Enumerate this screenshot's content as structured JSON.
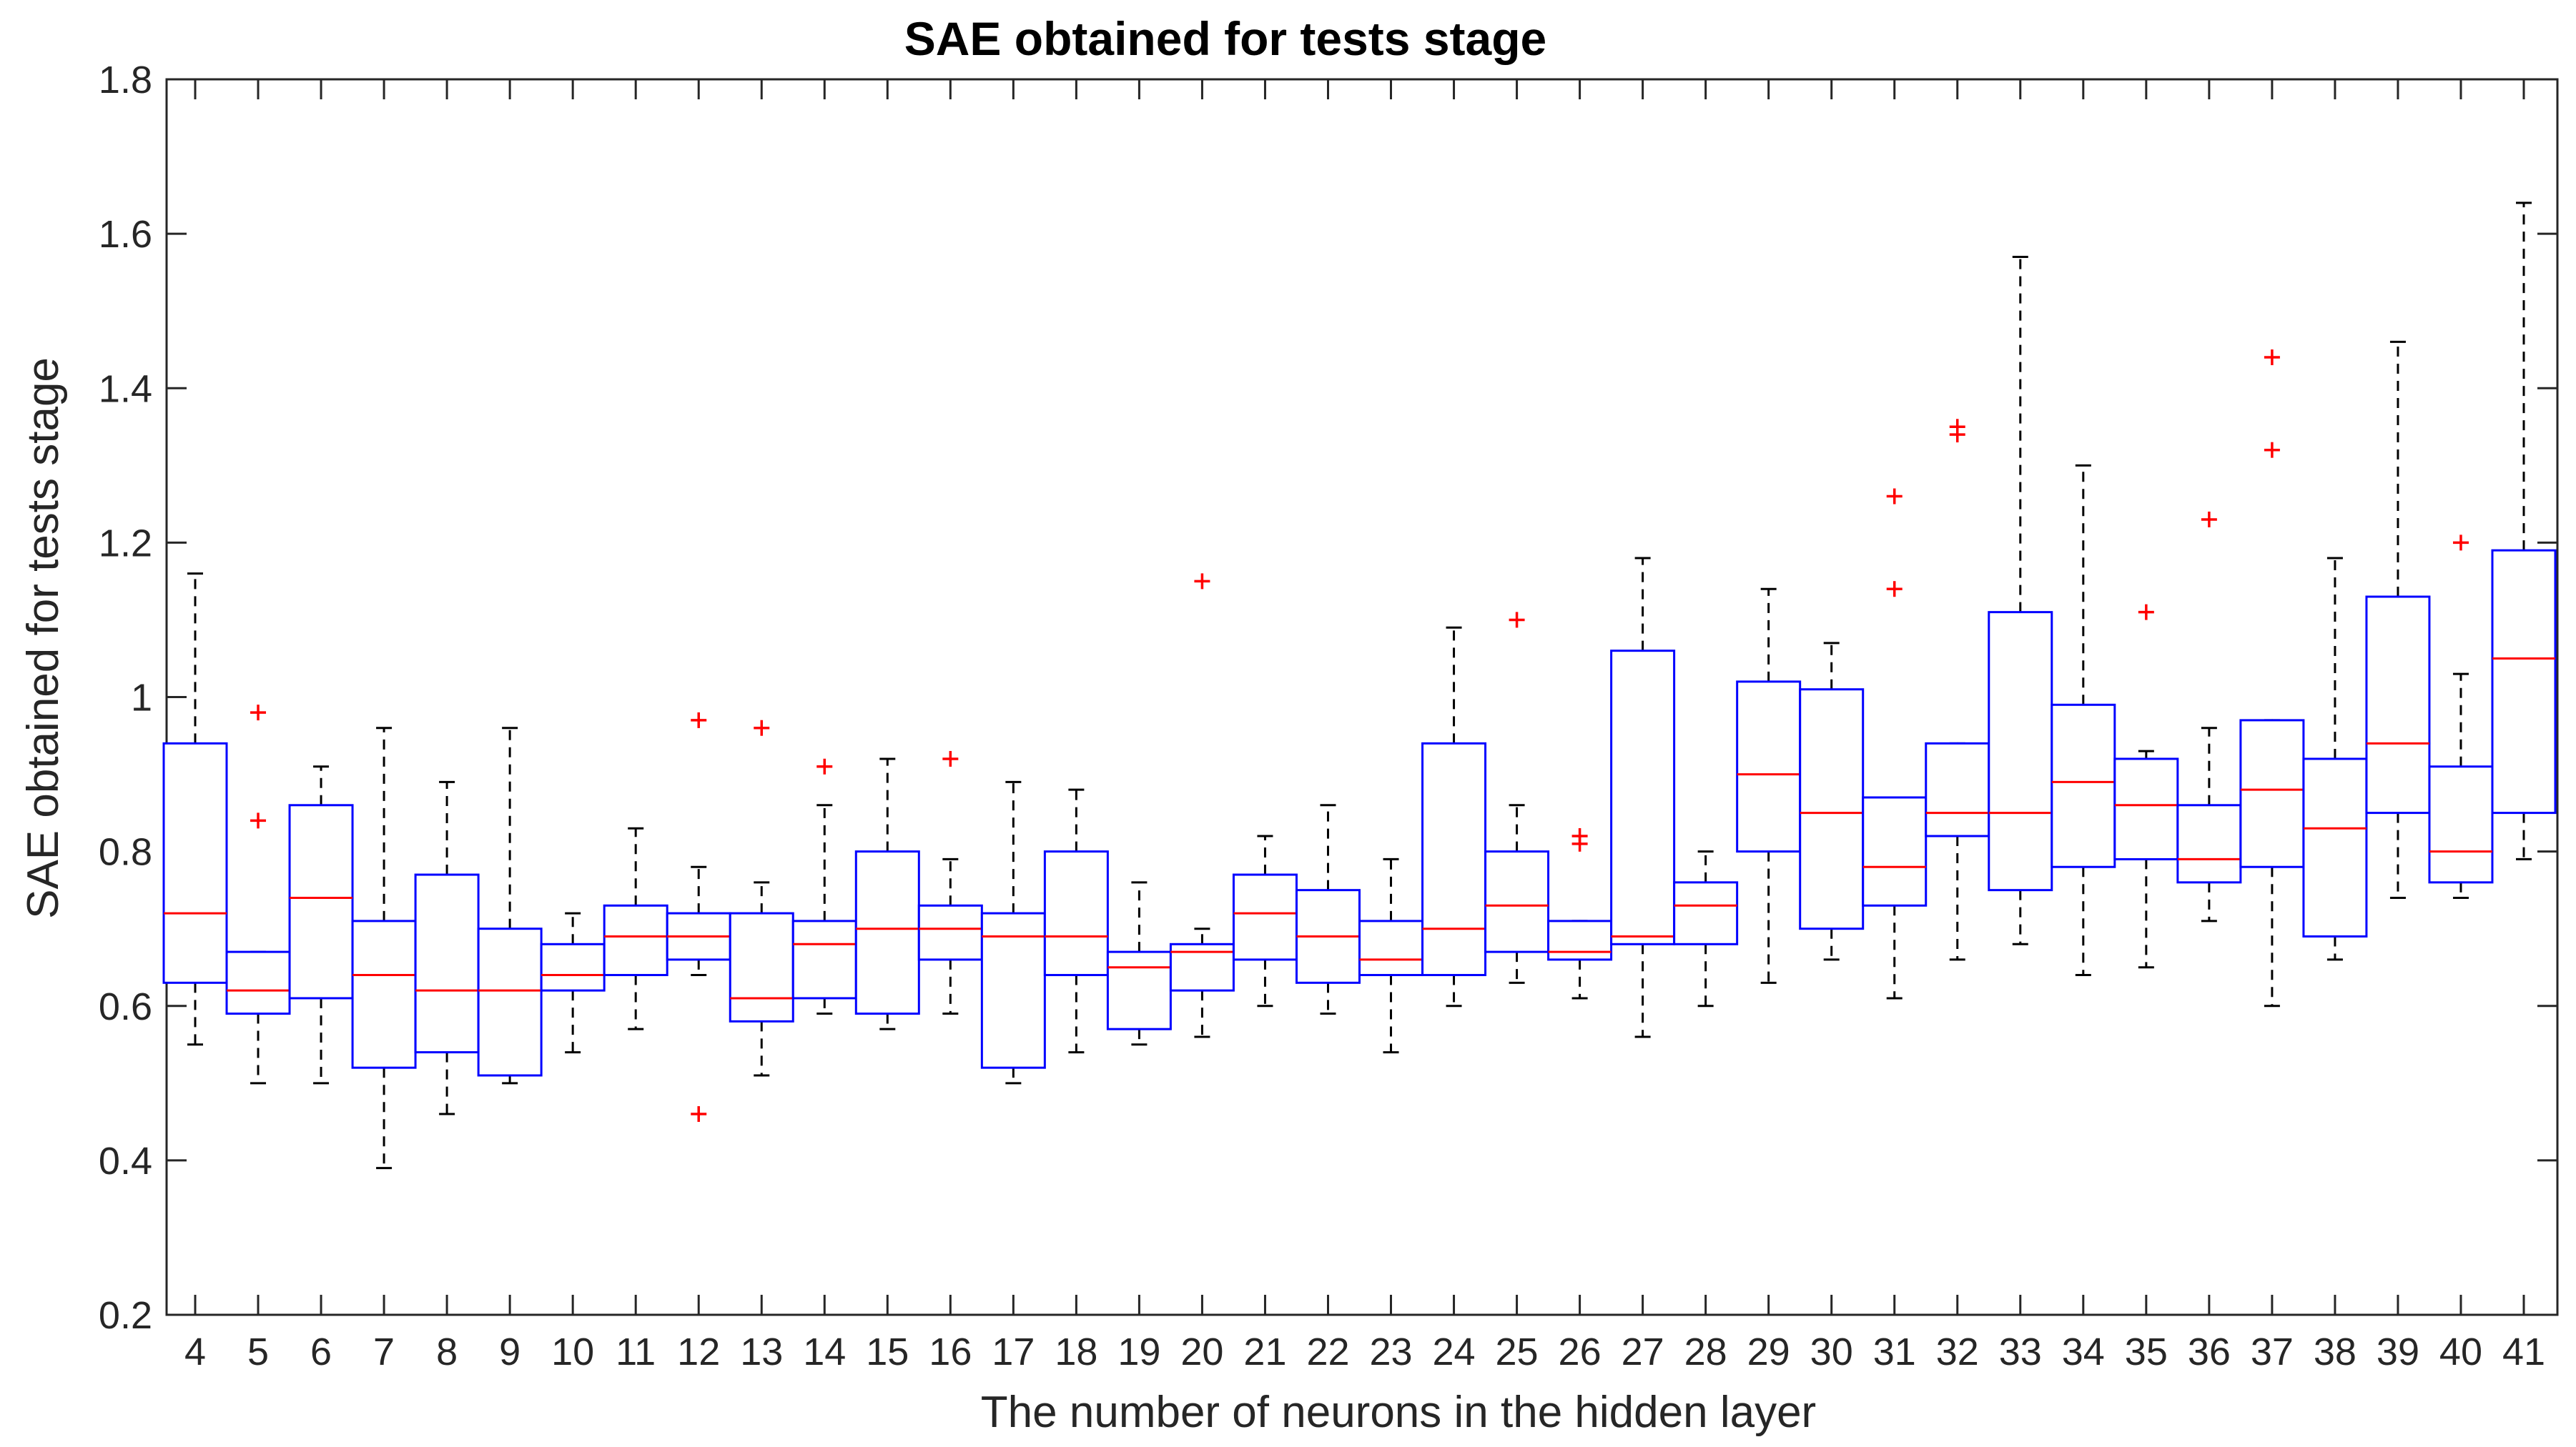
{
  "chart_data": {
    "type": "boxplot",
    "title": "SAE obtained for tests stage",
    "xlabel": "The number of neurons in the hidden layer",
    "ylabel": "SAE obtained for tests stage",
    "ylim": [
      0.2,
      1.8
    ],
    "yticks": [
      0.2,
      0.4,
      0.6,
      0.8,
      1,
      1.2,
      1.4,
      1.6,
      1.8
    ],
    "ytick_labels": [
      "0.2",
      "0.4",
      "0.6",
      "0.8",
      "1",
      "1.2",
      "1.4",
      "1.6",
      "1.8"
    ],
    "grid": false,
    "colors": {
      "box": "#0000ff",
      "median": "#ff0000",
      "whisker": "#000000",
      "outlier": "#ff0000",
      "axis": "#262626"
    },
    "categories": [
      "4",
      "5",
      "6",
      "7",
      "8",
      "9",
      "10",
      "11",
      "12",
      "13",
      "14",
      "15",
      "16",
      "17",
      "18",
      "19",
      "20",
      "21",
      "22",
      "23",
      "24",
      "25",
      "26",
      "27",
      "28",
      "29",
      "30",
      "31",
      "32",
      "33",
      "34",
      "35",
      "36",
      "37",
      "38",
      "39",
      "40",
      "41"
    ],
    "boxes": [
      {
        "label": "4",
        "min": 0.55,
        "q1": 0.63,
        "median": 0.72,
        "q3": 0.94,
        "max": 1.16,
        "outliers": []
      },
      {
        "label": "5",
        "min": 0.5,
        "q1": 0.59,
        "median": 0.62,
        "q3": 0.67,
        "max": 0.67,
        "outliers": [
          0.84,
          0.98
        ]
      },
      {
        "label": "6",
        "min": 0.5,
        "q1": 0.61,
        "median": 0.74,
        "q3": 0.86,
        "max": 0.91,
        "outliers": []
      },
      {
        "label": "7",
        "min": 0.39,
        "q1": 0.52,
        "median": 0.64,
        "q3": 0.71,
        "max": 0.96,
        "outliers": []
      },
      {
        "label": "8",
        "min": 0.46,
        "q1": 0.54,
        "median": 0.62,
        "q3": 0.77,
        "max": 0.89,
        "outliers": []
      },
      {
        "label": "9",
        "min": 0.5,
        "q1": 0.51,
        "median": 0.62,
        "q3": 0.7,
        "max": 0.96,
        "outliers": []
      },
      {
        "label": "10",
        "min": 0.54,
        "q1": 0.62,
        "median": 0.64,
        "q3": 0.68,
        "max": 0.72,
        "outliers": []
      },
      {
        "label": "11",
        "min": 0.57,
        "q1": 0.64,
        "median": 0.69,
        "q3": 0.73,
        "max": 0.83,
        "outliers": []
      },
      {
        "label": "12",
        "min": 0.64,
        "q1": 0.66,
        "median": 0.69,
        "q3": 0.72,
        "max": 0.78,
        "outliers": [
          0.46,
          0.97
        ]
      },
      {
        "label": "13",
        "min": 0.51,
        "q1": 0.58,
        "median": 0.61,
        "q3": 0.72,
        "max": 0.76,
        "outliers": [
          0.96
        ]
      },
      {
        "label": "14",
        "min": 0.59,
        "q1": 0.61,
        "median": 0.68,
        "q3": 0.71,
        "max": 0.86,
        "outliers": [
          0.91
        ]
      },
      {
        "label": "15",
        "min": 0.57,
        "q1": 0.59,
        "median": 0.7,
        "q3": 0.8,
        "max": 0.92,
        "outliers": []
      },
      {
        "label": "16",
        "min": 0.59,
        "q1": 0.66,
        "median": 0.7,
        "q3": 0.73,
        "max": 0.79,
        "outliers": [
          0.92
        ]
      },
      {
        "label": "17",
        "min": 0.5,
        "q1": 0.52,
        "median": 0.69,
        "q3": 0.72,
        "max": 0.89,
        "outliers": []
      },
      {
        "label": "18",
        "min": 0.54,
        "q1": 0.64,
        "median": 0.69,
        "q3": 0.8,
        "max": 0.88,
        "outliers": []
      },
      {
        "label": "19",
        "min": 0.55,
        "q1": 0.57,
        "median": 0.65,
        "q3": 0.67,
        "max": 0.76,
        "outliers": []
      },
      {
        "label": "20",
        "min": 0.56,
        "q1": 0.62,
        "median": 0.67,
        "q3": 0.68,
        "max": 0.7,
        "outliers": [
          1.15
        ]
      },
      {
        "label": "21",
        "min": 0.6,
        "q1": 0.66,
        "median": 0.72,
        "q3": 0.77,
        "max": 0.82,
        "outliers": []
      },
      {
        "label": "22",
        "min": 0.59,
        "q1": 0.63,
        "median": 0.69,
        "q3": 0.75,
        "max": 0.86,
        "outliers": []
      },
      {
        "label": "23",
        "min": 0.54,
        "q1": 0.64,
        "median": 0.66,
        "q3": 0.71,
        "max": 0.79,
        "outliers": []
      },
      {
        "label": "24",
        "min": 0.6,
        "q1": 0.64,
        "median": 0.7,
        "q3": 0.94,
        "max": 1.09,
        "outliers": []
      },
      {
        "label": "25",
        "min": 0.63,
        "q1": 0.67,
        "median": 0.73,
        "q3": 0.8,
        "max": 0.86,
        "outliers": [
          1.1
        ]
      },
      {
        "label": "26",
        "min": 0.61,
        "q1": 0.66,
        "median": 0.67,
        "q3": 0.71,
        "max": 0.71,
        "outliers": [
          0.81,
          0.82
        ]
      },
      {
        "label": "27",
        "min": 0.56,
        "q1": 0.68,
        "median": 0.69,
        "q3": 1.06,
        "max": 1.18,
        "outliers": []
      },
      {
        "label": "28",
        "min": 0.6,
        "q1": 0.68,
        "median": 0.73,
        "q3": 0.76,
        "max": 0.8,
        "outliers": []
      },
      {
        "label": "29",
        "min": 0.63,
        "q1": 0.8,
        "median": 0.9,
        "q3": 1.02,
        "max": 1.14,
        "outliers": []
      },
      {
        "label": "30",
        "min": 0.66,
        "q1": 0.7,
        "median": 0.85,
        "q3": 1.01,
        "max": 1.07,
        "outliers": []
      },
      {
        "label": "31",
        "min": 0.61,
        "q1": 0.73,
        "median": 0.78,
        "q3": 0.87,
        "max": 0.87,
        "outliers": [
          1.14,
          1.26
        ]
      },
      {
        "label": "32",
        "min": 0.66,
        "q1": 0.82,
        "median": 0.85,
        "q3": 0.94,
        "max": 0.94,
        "outliers": [
          1.34,
          1.35
        ]
      },
      {
        "label": "33",
        "min": 0.68,
        "q1": 0.75,
        "median": 0.85,
        "q3": 1.11,
        "max": 1.57,
        "outliers": []
      },
      {
        "label": "34",
        "min": 0.64,
        "q1": 0.78,
        "median": 0.89,
        "q3": 0.99,
        "max": 1.3,
        "outliers": []
      },
      {
        "label": "35",
        "min": 0.65,
        "q1": 0.79,
        "median": 0.86,
        "q3": 0.92,
        "max": 0.93,
        "outliers": [
          1.11
        ]
      },
      {
        "label": "36",
        "min": 0.71,
        "q1": 0.76,
        "median": 0.79,
        "q3": 0.86,
        "max": 0.96,
        "outliers": [
          1.23
        ]
      },
      {
        "label": "37",
        "min": 0.6,
        "q1": 0.78,
        "median": 0.88,
        "q3": 0.97,
        "max": 0.97,
        "outliers": [
          1.32,
          1.44
        ]
      },
      {
        "label": "38",
        "min": 0.66,
        "q1": 0.69,
        "median": 0.83,
        "q3": 0.92,
        "max": 1.18,
        "outliers": []
      },
      {
        "label": "39",
        "min": 0.74,
        "q1": 0.85,
        "median": 0.94,
        "q3": 1.13,
        "max": 1.46,
        "outliers": []
      },
      {
        "label": "40",
        "min": 0.74,
        "q1": 0.76,
        "median": 0.8,
        "q3": 0.91,
        "max": 1.03,
        "outliers": [
          1.2
        ]
      },
      {
        "label": "41",
        "min": 0.79,
        "q1": 0.85,
        "median": 1.05,
        "q3": 1.19,
        "max": 1.64,
        "outliers": []
      }
    ]
  }
}
